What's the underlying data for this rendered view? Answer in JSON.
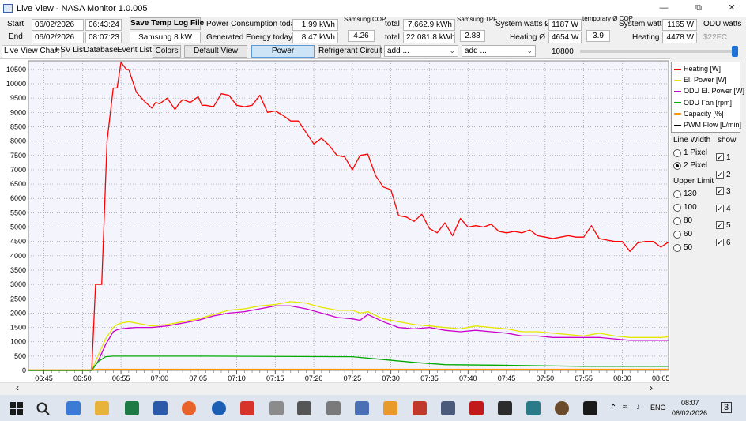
{
  "window": {
    "title": "Live View - NASA Monitor 1.0.005",
    "minimize_icon": "minimize-icon",
    "maximize_icon": "maximize-icon",
    "close_icon": "close-icon"
  },
  "header": {
    "start_label": "Start",
    "start_date": "06/02/2026",
    "start_time": "06:43:24",
    "end_label": "End",
    "end_date": "06/02/2026",
    "end_time": "08:07:23",
    "save_button": "Save Temp Log File",
    "device": "Samsung 8 kW",
    "power_consumption_label": "Power Consumption today",
    "power_consumption_value": "1.99 kWh",
    "generated_energy_label": "Generated Energy today",
    "generated_energy_value": "8.47 kWh",
    "cop_caption": "Samsung COP",
    "cop_value": "4.26",
    "total_label": "total",
    "total_consumption": "7,662.9 kWh",
    "total_generated": "22,081.8 kWh",
    "tpf_caption": "Samsung TPF",
    "tpf_value": "2.88",
    "system_watts_avg_label": "System watts Ø",
    "system_watts_avg_value": "1187 W",
    "heating_avg_label": "Heating Ø",
    "heating_avg_value": "4654 W",
    "temp_cop_caption": "temporary Ø COP",
    "temp_cop_value": "3.9",
    "system_watts_label": "System watts",
    "system_watts_value": "1165 W",
    "heating_label": "Heating",
    "heating_value": "4478 W",
    "odu_watts_label": "ODU watts",
    "odu_watts_value": "$22FC"
  },
  "tabs": {
    "live_view_chart": "Live View Chart",
    "fsv_list": "FSV List",
    "database": "Database",
    "event_list": "Event List",
    "colors": "Colors",
    "default_view": "Default View",
    "power": "Power",
    "refrigerant_circuit": "Refrigerant Circuit",
    "add1": "add ...",
    "add2": "add ...",
    "slider_value": "10800"
  },
  "legend": {
    "items": [
      {
        "label": "Heating [W]",
        "color": "#ff0000"
      },
      {
        "label": "El. Power [W]",
        "color": "#e6e600"
      },
      {
        "label": "ODU El. Power [W]",
        "color": "#cc00cc"
      },
      {
        "label": "ODU Fan [rpm]",
        "color": "#00aa00"
      },
      {
        "label": "Capacity [%]",
        "color": "#ff9900"
      },
      {
        "label": "PWM Flow [L/min]",
        "color": "#000000"
      }
    ]
  },
  "controls": {
    "line_width_label": "Line Width",
    "show_label": "show",
    "px1": "1 Pixel",
    "px2": "2 Pixel",
    "upper_limit_label": "Upper Limit",
    "limits": [
      "130",
      "100",
      "80",
      "60",
      "50"
    ],
    "checks": [
      "1",
      "2",
      "3",
      "4",
      "5",
      "6"
    ]
  },
  "chart_data": {
    "type": "line",
    "x_ticks": [
      "06:45",
      "06:50",
      "06:55",
      "07:00",
      "07:05",
      "07:10",
      "07:15",
      "07:20",
      "07:25",
      "07:30",
      "07:35",
      "07:40",
      "07:45",
      "07:50",
      "07:55",
      "08:00",
      "08:05"
    ],
    "y_ticks": [
      0,
      500,
      1000,
      1500,
      2000,
      2500,
      3000,
      3500,
      4000,
      4500,
      5000,
      5500,
      6000,
      6500,
      7000,
      7500,
      8000,
      8500,
      9000,
      9500,
      10000,
      10500
    ],
    "xlim_minutes": [
      -2,
      81
    ],
    "ylim": [
      0,
      10800
    ],
    "grid": true,
    "series": [
      {
        "name": "Heating [W]",
        "color": "#ff0000",
        "x": [
          -2,
          6.2,
          6.7,
          7.5,
          8.2,
          9,
          9.5,
          10,
          10.7,
          11,
          12,
          13,
          14,
          14.5,
          15,
          16,
          17,
          17.5,
          18,
          19,
          20,
          20.5,
          21,
          22,
          23,
          24,
          25,
          26,
          27,
          28,
          29,
          30,
          31,
          32,
          33,
          34,
          35,
          36,
          37,
          38,
          39,
          40,
          41,
          42,
          43,
          44,
          45,
          46,
          47,
          48,
          49,
          50,
          51,
          52,
          53,
          54,
          55,
          56,
          57,
          58,
          59,
          60,
          61,
          62,
          63,
          64,
          65,
          66,
          67,
          68,
          69,
          70,
          71,
          72,
          73,
          74,
          75,
          76,
          77,
          78,
          79,
          80,
          81
        ],
        "y": [
          0,
          0,
          3000,
          3000,
          8000,
          9850,
          9850,
          10750,
          10500,
          10500,
          9700,
          9400,
          9150,
          9350,
          9300,
          9500,
          9100,
          9300,
          9450,
          9350,
          9550,
          9250,
          9250,
          9200,
          9650,
          9600,
          9250,
          9200,
          9250,
          9600,
          9000,
          9050,
          8900,
          8700,
          8700,
          8300,
          7900,
          8100,
          7850,
          7500,
          7450,
          7000,
          7500,
          7550,
          6800,
          6400,
          6300,
          5400,
          5350,
          5200,
          5450,
          4950,
          4800,
          5150,
          4700,
          5300,
          5000,
          5050,
          5000,
          5100,
          4850,
          4800,
          4850,
          4800,
          4900,
          4700,
          4650,
          4600,
          4650,
          4700,
          4650,
          4650,
          5050,
          4600,
          4550,
          4500,
          4500,
          4150,
          4450,
          4500,
          4500,
          4300,
          4480
        ]
      },
      {
        "name": "El. Power [W]",
        "color": "#e6e600",
        "x": [
          -2,
          6.2,
          7,
          8,
          9,
          9.5,
          10,
          11,
          12,
          14,
          16,
          18,
          20,
          22,
          24,
          26,
          28,
          30,
          32,
          34,
          36,
          38,
          40,
          41,
          42,
          44,
          46,
          48,
          50,
          52,
          54,
          56,
          58,
          60,
          62,
          64,
          66,
          68,
          70,
          72,
          74,
          76,
          78,
          80,
          81
        ],
        "y": [
          0,
          0,
          500,
          1100,
          1500,
          1600,
          1650,
          1700,
          1650,
          1550,
          1600,
          1700,
          1800,
          1950,
          2100,
          2150,
          2250,
          2300,
          2400,
          2350,
          2200,
          2100,
          2100,
          2000,
          2050,
          1800,
          1700,
          1600,
          1550,
          1500,
          1450,
          1550,
          1500,
          1450,
          1350,
          1350,
          1300,
          1250,
          1200,
          1300,
          1200,
          1150,
          1150,
          1150,
          1170
        ]
      },
      {
        "name": "ODU El. Power [W]",
        "color": "#cc00cc",
        "x": [
          -2,
          6.2,
          7,
          8,
          9,
          9.5,
          10,
          11,
          12,
          14,
          16,
          18,
          20,
          22,
          24,
          26,
          28,
          30,
          32,
          34,
          36,
          38,
          40,
          41,
          42,
          44,
          46,
          48,
          50,
          52,
          54,
          56,
          58,
          60,
          62,
          64,
          66,
          68,
          70,
          72,
          74,
          76,
          78,
          80,
          81
        ],
        "y": [
          0,
          0,
          300,
          900,
          1350,
          1420,
          1450,
          1480,
          1500,
          1500,
          1550,
          1650,
          1750,
          1900,
          2000,
          2050,
          2150,
          2250,
          2250,
          2150,
          2000,
          1850,
          1800,
          1750,
          1950,
          1700,
          1500,
          1450,
          1500,
          1400,
          1350,
          1400,
          1350,
          1300,
          1200,
          1200,
          1150,
          1150,
          1150,
          1150,
          1100,
          1050,
          1050,
          1050,
          1050
        ]
      },
      {
        "name": "ODU Fan [rpm]",
        "color": "#00aa00",
        "x": [
          -2,
          6.2,
          7,
          8,
          9,
          20,
          40,
          44,
          48,
          52,
          60,
          70,
          81
        ],
        "y": [
          0,
          0,
          300,
          480,
          500,
          500,
          480,
          380,
          280,
          200,
          180,
          140,
          140
        ]
      },
      {
        "name": "Capacity [%]",
        "color": "#ff9900",
        "x": [
          -2,
          6.2,
          7,
          81
        ],
        "y": [
          20,
          20,
          40,
          40
        ]
      }
    ]
  },
  "scroll": {
    "left_arrow": "‹",
    "right_arrow": "›"
  },
  "taskbar": {
    "language": "ENG",
    "time": "08:07",
    "date": "06/02/2026",
    "notifications": "3"
  }
}
